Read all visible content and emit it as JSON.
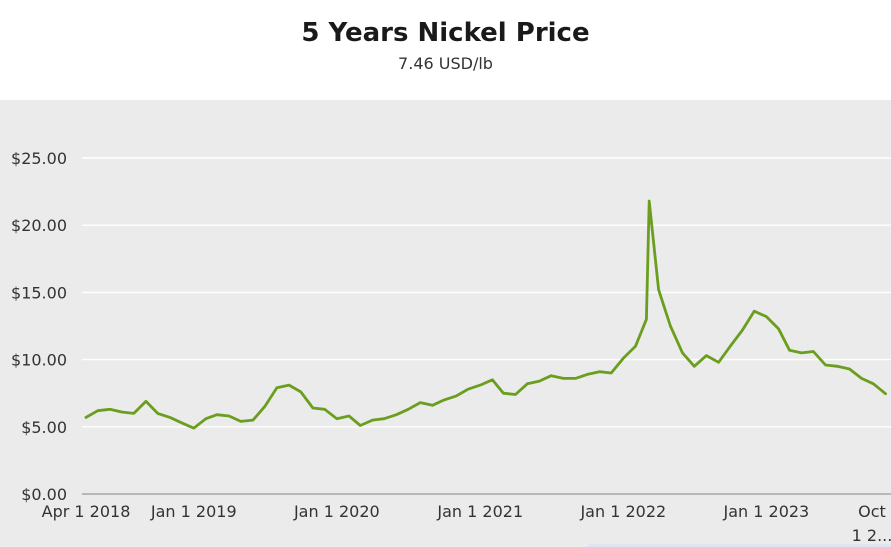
{
  "chart_data": {
    "type": "line",
    "title": "5 Years Nickel Price",
    "subtitle": "7.46 USD/lb",
    "xlabel": "",
    "ylabel": "",
    "ylim": [
      0,
      25
    ],
    "yticks": [
      "$0.00",
      "$5.00",
      "$10.00",
      "$15.00",
      "$20.00",
      "$25.00"
    ],
    "yticks_values": [
      0,
      5,
      10,
      15,
      20,
      25
    ],
    "xticks": [
      "Apr 1 2018",
      "Jan 1 2019",
      "Jan 1 2020",
      "Jan 1 2021",
      "Jan 1 2022",
      "Jan 1 2023",
      "Oct 1 2..."
    ],
    "xticks_dates": [
      "2018-04-01",
      "2019-01-01",
      "2020-01-01",
      "2021-01-01",
      "2022-01-01",
      "2023-01-01",
      "2023-10-01"
    ],
    "grid": true,
    "line_color": "#6b9e1f",
    "background_color": "#ebebeb",
    "series": [
      {
        "name": "",
        "x": [
          "2018-04-01",
          "2018-05-01",
          "2018-06-01",
          "2018-07-01",
          "2018-08-01",
          "2018-09-01",
          "2018-10-01",
          "2018-11-01",
          "2018-12-01",
          "2019-01-01",
          "2019-02-01",
          "2019-03-01",
          "2019-04-01",
          "2019-05-01",
          "2019-06-01",
          "2019-07-01",
          "2019-08-01",
          "2019-09-01",
          "2019-10-01",
          "2019-11-01",
          "2019-12-01",
          "2020-01-01",
          "2020-02-01",
          "2020-03-01",
          "2020-04-01",
          "2020-05-01",
          "2020-06-01",
          "2020-07-01",
          "2020-08-01",
          "2020-09-01",
          "2020-10-01",
          "2020-11-01",
          "2020-12-01",
          "2021-01-01",
          "2021-02-01",
          "2021-03-01",
          "2021-04-01",
          "2021-05-01",
          "2021-06-01",
          "2021-07-01",
          "2021-08-01",
          "2021-09-01",
          "2021-10-01",
          "2021-11-01",
          "2021-12-01",
          "2022-01-01",
          "2022-02-01",
          "2022-03-01",
          "2022-03-08",
          "2022-04-01",
          "2022-05-01",
          "2022-06-01",
          "2022-07-01",
          "2022-08-01",
          "2022-09-01",
          "2022-10-01",
          "2022-11-01",
          "2022-12-01",
          "2023-01-01",
          "2023-02-01",
          "2023-03-01",
          "2023-04-01",
          "2023-05-01",
          "2023-06-01",
          "2023-07-01",
          "2023-08-01",
          "2023-09-01",
          "2023-10-01",
          "2023-11-01"
        ],
        "values": [
          5.7,
          6.2,
          6.3,
          6.1,
          6.0,
          6.9,
          6.0,
          5.7,
          5.3,
          4.9,
          5.6,
          5.9,
          5.8,
          5.4,
          5.5,
          6.5,
          7.9,
          8.1,
          7.6,
          6.4,
          6.3,
          5.6,
          5.8,
          5.1,
          5.5,
          5.6,
          5.9,
          6.3,
          6.8,
          6.6,
          7.0,
          7.3,
          7.8,
          8.1,
          8.5,
          7.5,
          7.4,
          8.2,
          8.4,
          8.8,
          8.6,
          8.6,
          8.9,
          9.1,
          9.0,
          10.1,
          11.0,
          13.0,
          21.8,
          15.2,
          12.5,
          10.5,
          9.5,
          10.3,
          9.8,
          11.0,
          12.2,
          13.6,
          13.2,
          12.3,
          10.7,
          10.5,
          10.6,
          9.6,
          9.5,
          9.3,
          8.6,
          8.2,
          7.46
        ]
      }
    ]
  }
}
